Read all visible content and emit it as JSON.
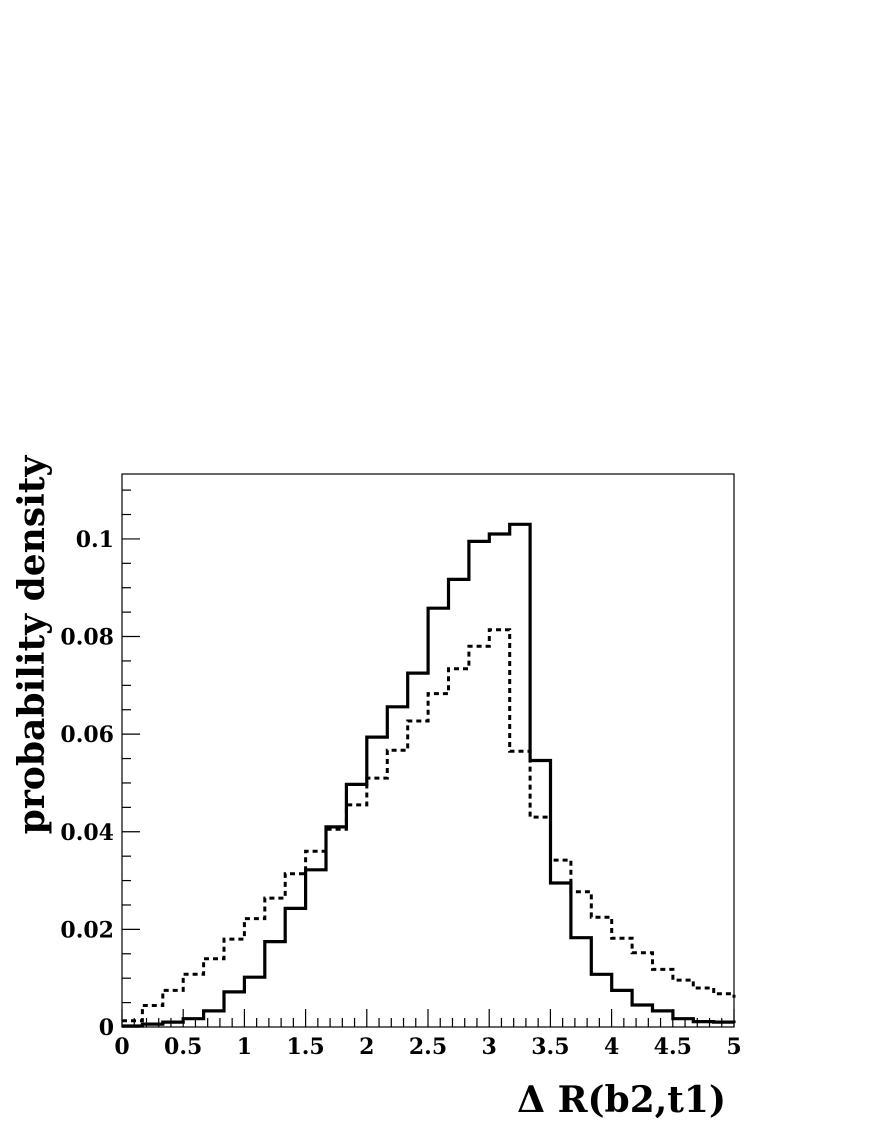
{
  "chart_data": {
    "type": "histogram",
    "xlabel": "Δ R(b2,t1)",
    "ylabel": "probability density",
    "xlim": [
      0,
      5
    ],
    "ylim": [
      0,
      0.1133
    ],
    "x_ticks": [
      0,
      0.5,
      1,
      1.5,
      2,
      2.5,
      3,
      3.5,
      4,
      4.5,
      5
    ],
    "x_tick_labels": [
      "0",
      "0.5",
      "1",
      "1.5",
      "2",
      "2.5",
      "3",
      "3.5",
      "4",
      "4.5",
      "5"
    ],
    "y_ticks": [
      0,
      0.02,
      0.04,
      0.06,
      0.08,
      0.1
    ],
    "y_tick_labels": [
      "0",
      "0.02",
      "0.04",
      "0.06",
      "0.08",
      "0.1"
    ],
    "bin_width": 0.1667,
    "bin_edges_start": 0,
    "series": [
      {
        "style": "solid",
        "values": [
          0.0002,
          0.0006,
          0.001,
          0.0017,
          0.0033,
          0.0072,
          0.0102,
          0.0175,
          0.0243,
          0.0322,
          0.041,
          0.0497,
          0.0594,
          0.0656,
          0.0725,
          0.0858,
          0.0917,
          0.0995,
          0.101,
          0.103,
          0.0546,
          0.0295,
          0.0183,
          0.0108,
          0.0075,
          0.0045,
          0.0033,
          0.0017,
          0.0011,
          0.001,
          0.0008
        ]
      },
      {
        "style": "dotted",
        "values": [
          0.0013,
          0.0044,
          0.0075,
          0.0108,
          0.014,
          0.018,
          0.0222,
          0.0264,
          0.0314,
          0.036,
          0.0405,
          0.0455,
          0.051,
          0.0567,
          0.0627,
          0.0683,
          0.0734,
          0.078,
          0.0814,
          0.0565,
          0.043,
          0.0342,
          0.0277,
          0.0225,
          0.0182,
          0.0152,
          0.0118,
          0.0096,
          0.008,
          0.0068,
          0.006
        ]
      }
    ],
    "grid": false,
    "legend": "none"
  }
}
